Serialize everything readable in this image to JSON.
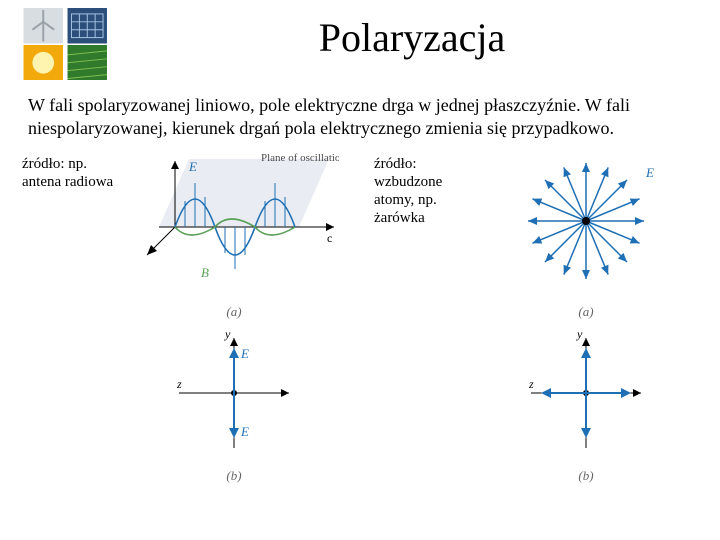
{
  "title": "Polaryzacja",
  "body_text": "W fali spolaryzowanej liniowo, pole elektryczne drga w jednej płaszczyźnie. W fali niespolaryzowanej, kierunek drgań pola elektrycznego zmienia się przypadkowo.",
  "left": {
    "caption": "źródło: np. antena radiowa",
    "wave": {
      "type": "diagram",
      "e_color": "#1f6fb5",
      "b_color": "#5aa05a",
      "axis_color": "#000000",
      "plane_color": "#dfe6ee",
      "plane_label": "Plane of oscillation",
      "plane_label_color": "#4a4a4a",
      "symbol_E": "E",
      "symbol_B": "B",
      "symbol_c": "c",
      "sublabel": "(a)"
    },
    "cross": {
      "type": "diagram",
      "axis_color": "#000000",
      "e_color": "#1f6fb5",
      "label_y": "y",
      "label_z": "z",
      "symbol_E_up": "E",
      "symbol_E_down": "E",
      "sublabel": "(b)"
    }
  },
  "right": {
    "caption": "źródło: wzbudzone atomy, np. żarówka",
    "star": {
      "type": "diagram",
      "e_color": "#1f6fb5",
      "axis_color": "#000000",
      "n_rays": 16,
      "symbol_E": "E",
      "sublabel": "(a)"
    },
    "cross": {
      "type": "diagram",
      "axis_color": "#000000",
      "e_color": "#1f6fb5",
      "label_y": "y",
      "label_z": "z",
      "sublabel": "(b)"
    }
  },
  "logo": {
    "tl_bg": "#d8dde2",
    "tl_accent": "#9aa1a8",
    "tr_bg": "#2b4f7a",
    "tr_accent": "#a6c3e4",
    "bl_bg": "#f2a90c",
    "bl_accent": "#fff3b0",
    "br_bg": "#2f7a2b",
    "br_accent": "#7fbf4e"
  },
  "colors": {
    "text": "#000000",
    "background": "#ffffff"
  },
  "typography": {
    "title_pt": 40,
    "body_pt": 18,
    "caption_pt": 15,
    "sublabel_pt": 13,
    "font_family": "Times New Roman"
  }
}
